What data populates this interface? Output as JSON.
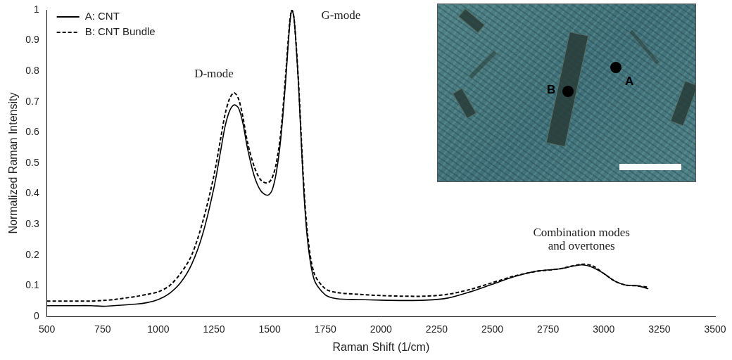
{
  "chart_data": {
    "type": "line",
    "x_label": "Raman Shift (1/cm)",
    "y_label": "Normalized Raman Intensity",
    "x": [
      500,
      600,
      700,
      750,
      800,
      900,
      950,
      1000,
      1050,
      1100,
      1150,
      1200,
      1250,
      1280,
      1300,
      1320,
      1340,
      1360,
      1380,
      1400,
      1430,
      1460,
      1490,
      1510,
      1530,
      1550,
      1570,
      1590,
      1600,
      1610,
      1630,
      1650,
      1670,
      1700,
      1750,
      1800,
      1900,
      2000,
      2100,
      2200,
      2300,
      2400,
      2500,
      2600,
      2700,
      2800,
      2900,
      2950,
      3000,
      3050,
      3100,
      3150,
      3200
    ],
    "series": [
      {
        "name": "A: CNT",
        "color": "#000000",
        "line_style": "solid",
        "values": [
          0.035,
          0.035,
          0.035,
          0.033,
          0.035,
          0.04,
          0.045,
          0.055,
          0.075,
          0.11,
          0.17,
          0.27,
          0.42,
          0.54,
          0.62,
          0.67,
          0.69,
          0.68,
          0.63,
          0.55,
          0.46,
          0.41,
          0.395,
          0.41,
          0.47,
          0.58,
          0.75,
          0.95,
          1.0,
          0.97,
          0.75,
          0.45,
          0.25,
          0.12,
          0.07,
          0.058,
          0.055,
          0.053,
          0.052,
          0.053,
          0.06,
          0.08,
          0.105,
          0.13,
          0.148,
          0.155,
          0.168,
          0.16,
          0.14,
          0.115,
          0.102,
          0.1,
          0.09
        ]
      },
      {
        "name": "B: CNT Bundle",
        "color": "#000000",
        "line_style": "dashed",
        "values": [
          0.05,
          0.05,
          0.05,
          0.052,
          0.055,
          0.065,
          0.072,
          0.08,
          0.1,
          0.14,
          0.2,
          0.31,
          0.46,
          0.58,
          0.66,
          0.71,
          0.73,
          0.71,
          0.65,
          0.57,
          0.49,
          0.445,
          0.435,
          0.45,
          0.5,
          0.6,
          0.77,
          0.96,
          1.0,
          0.97,
          0.76,
          0.47,
          0.27,
          0.14,
          0.09,
          0.078,
          0.072,
          0.068,
          0.066,
          0.066,
          0.072,
          0.088,
          0.11,
          0.132,
          0.147,
          0.155,
          0.17,
          0.165,
          0.14,
          0.115,
          0.102,
          0.1,
          0.095
        ]
      }
    ],
    "xlim": [
      500,
      3500
    ],
    "xticks": [
      500,
      750,
      1000,
      1250,
      1500,
      1750,
      2000,
      2250,
      2500,
      2750,
      3000,
      3250,
      3500
    ],
    "ylim": [
      0,
      1
    ],
    "yticks": [
      0,
      0.1,
      0.2,
      0.3,
      0.4,
      0.5,
      0.6,
      0.7,
      0.8,
      0.9,
      1
    ],
    "grid": false,
    "legend": "upper left",
    "annotations": [
      {
        "text": "D-mode",
        "x": 1250,
        "y": 0.79
      },
      {
        "text": "G-mode",
        "x": 1820,
        "y": 0.98
      },
      {
        "text": "Combination modes and overtones",
        "x": 2900,
        "y": 0.25
      }
    ],
    "inset_labels": [
      "B",
      "A"
    ]
  }
}
